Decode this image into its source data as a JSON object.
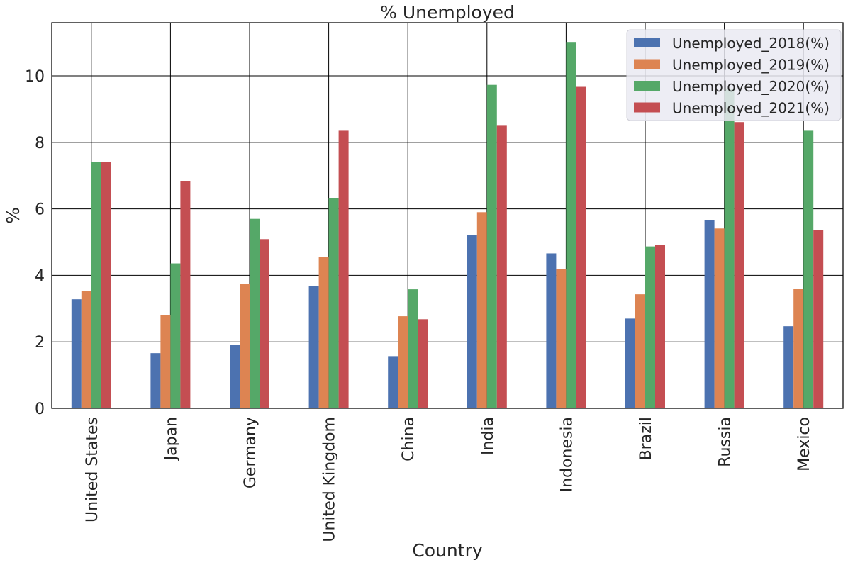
{
  "chart_data": {
    "type": "bar",
    "title": "% Unemployed",
    "xlabel": "Country",
    "ylabel": "%",
    "ylim": [
      0,
      11.6
    ],
    "yticks": [
      0,
      2,
      4,
      6,
      8,
      10
    ],
    "grid": true,
    "legend_position": "top-right",
    "categories": [
      "United States",
      "Japan",
      "Germany",
      "United Kingdom",
      "China",
      "India",
      "Indonesia",
      "Brazil",
      "Russia",
      "Mexico"
    ],
    "series": [
      {
        "name": "Unemployed_2018(%)",
        "color": "#4c72b0",
        "values": [
          3.28,
          1.66,
          1.9,
          3.68,
          1.57,
          5.21,
          4.66,
          2.7,
          5.66,
          2.47
        ]
      },
      {
        "name": "Unemployed_2019(%)",
        "color": "#dd8452",
        "values": [
          3.52,
          2.81,
          3.75,
          4.56,
          2.77,
          5.9,
          4.18,
          3.43,
          5.41,
          3.59
        ]
      },
      {
        "name": "Unemployed_2020(%)",
        "color": "#55a868",
        "values": [
          7.42,
          4.36,
          5.7,
          6.33,
          3.58,
          9.73,
          11.02,
          4.87,
          9.62,
          8.35
        ]
      },
      {
        "name": "Unemployed_2021(%)",
        "color": "#c44e52",
        "values": [
          7.42,
          6.84,
          5.09,
          8.35,
          2.68,
          8.5,
          9.67,
          4.92,
          8.61,
          5.37
        ]
      }
    ]
  }
}
